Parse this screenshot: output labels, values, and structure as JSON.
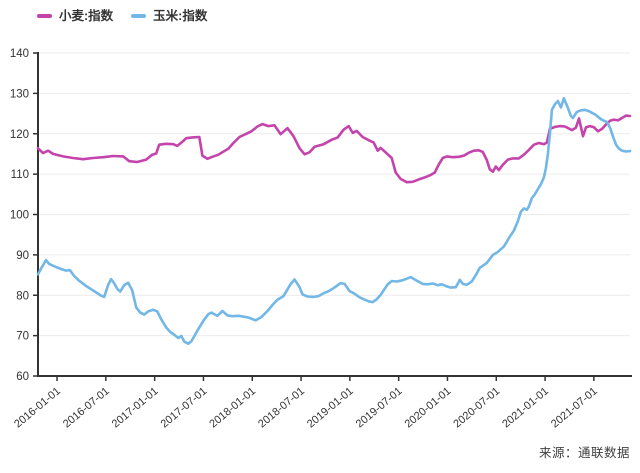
{
  "legend": {
    "items": [
      {
        "label": "小麦:指数",
        "color": "#c444ac"
      },
      {
        "label": "玉米:指数",
        "color": "#72b7e6"
      }
    ]
  },
  "source_note": "来源：通联数据",
  "chart_data": {
    "type": "line",
    "title": "",
    "xlabel": "",
    "ylabel": "",
    "grid": true,
    "legend_position": "top-left",
    "colors": {
      "grid": "#ececec",
      "axis": "#333333",
      "text": "#333333"
    },
    "y_axis": {
      "min": 60,
      "max": 140,
      "ticks": [
        60,
        70,
        80,
        90,
        100,
        110,
        120,
        130,
        140
      ]
    },
    "x_axis": {
      "range": [
        2015.805,
        2021.87
      ],
      "tick_positions": [
        2016.0,
        2016.5,
        2017.0,
        2017.5,
        2018.0,
        2018.5,
        2019.0,
        2019.5,
        2020.0,
        2020.5,
        2021.0,
        2021.5
      ],
      "tick_labels": [
        "2016-01-01",
        "2016-07-01",
        "2017-01-01",
        "2017-07-01",
        "2018-01-01",
        "2018-07-01",
        "2019-01-01",
        "2019-07-01",
        "2020-01-01",
        "2020-07-01",
        "2021-01-01",
        "2021-07-01"
      ]
    },
    "series": [
      {
        "name": "小麦:指数",
        "color": "#c444ac",
        "points": [
          [
            2015.805,
            116.4
          ],
          [
            2015.856,
            115.2
          ],
          [
            2015.908,
            115.8
          ],
          [
            2015.959,
            115.0
          ],
          [
            2016.062,
            114.4
          ],
          [
            2016.164,
            114.0
          ],
          [
            2016.267,
            113.7
          ],
          [
            2016.37,
            114.0
          ],
          [
            2016.472,
            114.2
          ],
          [
            2016.575,
            114.5
          ],
          [
            2016.678,
            114.4
          ],
          [
            2016.739,
            113.2
          ],
          [
            2016.821,
            113.0
          ],
          [
            2016.914,
            113.6
          ],
          [
            2016.975,
            114.8
          ],
          [
            2017.016,
            115.1
          ],
          [
            2017.047,
            117.3
          ],
          [
            2017.119,
            117.5
          ],
          [
            2017.191,
            117.4
          ],
          [
            2017.232,
            117.0
          ],
          [
            2017.273,
            117.8
          ],
          [
            2017.324,
            118.9
          ],
          [
            2017.386,
            119.1
          ],
          [
            2017.458,
            119.2
          ],
          [
            2017.489,
            114.6
          ],
          [
            2017.54,
            113.8
          ],
          [
            2017.591,
            114.3
          ],
          [
            2017.653,
            114.8
          ],
          [
            2017.755,
            116.3
          ],
          [
            2017.807,
            117.7
          ],
          [
            2017.868,
            119.2
          ],
          [
            2017.93,
            119.9
          ],
          [
            2017.992,
            120.6
          ],
          [
            2018.053,
            121.8
          ],
          [
            2018.105,
            122.4
          ],
          [
            2018.166,
            121.9
          ],
          [
            2018.228,
            122.1
          ],
          [
            2018.29,
            119.9
          ],
          [
            2018.361,
            121.4
          ],
          [
            2018.423,
            119.4
          ],
          [
            2018.485,
            116.4
          ],
          [
            2018.536,
            114.9
          ],
          [
            2018.587,
            115.4
          ],
          [
            2018.639,
            116.8
          ],
          [
            2018.731,
            117.4
          ],
          [
            2018.813,
            118.5
          ],
          [
            2018.875,
            119.1
          ],
          [
            2018.936,
            121.0
          ],
          [
            2018.988,
            121.9
          ],
          [
            2019.029,
            120.2
          ],
          [
            2019.07,
            120.7
          ],
          [
            2019.131,
            119.2
          ],
          [
            2019.193,
            118.4
          ],
          [
            2019.244,
            117.8
          ],
          [
            2019.285,
            115.8
          ],
          [
            2019.316,
            116.5
          ],
          [
            2019.388,
            114.9
          ],
          [
            2019.429,
            114.0
          ],
          [
            2019.47,
            110.4
          ],
          [
            2019.521,
            108.8
          ],
          [
            2019.583,
            108.0
          ],
          [
            2019.644,
            108.1
          ],
          [
            2019.706,
            108.7
          ],
          [
            2019.768,
            109.2
          ],
          [
            2019.829,
            109.8
          ],
          [
            2019.87,
            110.4
          ],
          [
            2019.911,
            112.4
          ],
          [
            2019.952,
            114.0
          ],
          [
            2019.993,
            114.4
          ],
          [
            2020.055,
            114.2
          ],
          [
            2020.116,
            114.3
          ],
          [
            2020.168,
            114.6
          ],
          [
            2020.219,
            115.3
          ],
          [
            2020.27,
            115.8
          ],
          [
            2020.321,
            115.9
          ],
          [
            2020.362,
            115.5
          ],
          [
            2020.403,
            113.5
          ],
          [
            2020.434,
            111.2
          ],
          [
            2020.465,
            110.6
          ],
          [
            2020.495,
            111.9
          ],
          [
            2020.526,
            111.0
          ],
          [
            2020.567,
            112.3
          ],
          [
            2020.619,
            113.6
          ],
          [
            2020.67,
            113.9
          ],
          [
            2020.731,
            113.9
          ],
          [
            2020.783,
            114.8
          ],
          [
            2020.834,
            116.0
          ],
          [
            2020.885,
            117.3
          ],
          [
            2020.937,
            117.7
          ],
          [
            2020.988,
            117.4
          ],
          [
            2021.018,
            117.8
          ],
          [
            2021.049,
            121.2
          ],
          [
            2021.101,
            121.7
          ],
          [
            2021.152,
            121.9
          ],
          [
            2021.203,
            121.8
          ],
          [
            2021.244,
            121.3
          ],
          [
            2021.275,
            120.9
          ],
          [
            2021.316,
            121.5
          ],
          [
            2021.347,
            123.8
          ],
          [
            2021.388,
            119.4
          ],
          [
            2021.419,
            121.6
          ],
          [
            2021.46,
            121.9
          ],
          [
            2021.501,
            121.6
          ],
          [
            2021.542,
            120.6
          ],
          [
            2021.583,
            121.2
          ],
          [
            2021.624,
            122.3
          ],
          [
            2021.665,
            123.2
          ],
          [
            2021.706,
            123.5
          ],
          [
            2021.747,
            123.3
          ],
          [
            2021.788,
            123.9
          ],
          [
            2021.829,
            124.5
          ],
          [
            2021.87,
            124.4
          ]
        ]
      },
      {
        "name": "玉米:指数",
        "color": "#72b7e6",
        "points": [
          [
            2015.805,
            85.2
          ],
          [
            2015.836,
            86.6
          ],
          [
            2015.887,
            88.7
          ],
          [
            2015.918,
            87.8
          ],
          [
            2015.969,
            87.2
          ],
          [
            2016.041,
            86.5
          ],
          [
            2016.092,
            86.1
          ],
          [
            2016.133,
            86.2
          ],
          [
            2016.175,
            84.8
          ],
          [
            2016.226,
            83.6
          ],
          [
            2016.298,
            82.3
          ],
          [
            2016.349,
            81.5
          ],
          [
            2016.4,
            80.7
          ],
          [
            2016.452,
            79.9
          ],
          [
            2016.483,
            79.6
          ],
          [
            2016.524,
            82.6
          ],
          [
            2016.554,
            84.0
          ],
          [
            2016.585,
            83.0
          ],
          [
            2016.616,
            81.6
          ],
          [
            2016.647,
            80.9
          ],
          [
            2016.688,
            82.5
          ],
          [
            2016.729,
            83.1
          ],
          [
            2016.77,
            81.2
          ],
          [
            2016.811,
            77.0
          ],
          [
            2016.852,
            75.7
          ],
          [
            2016.893,
            75.2
          ],
          [
            2016.934,
            76.0
          ],
          [
            2016.986,
            76.4
          ],
          [
            2017.027,
            76.0
          ],
          [
            2017.068,
            74.0
          ],
          [
            2017.119,
            72.0
          ],
          [
            2017.16,
            70.9
          ],
          [
            2017.201,
            70.2
          ],
          [
            2017.242,
            69.4
          ],
          [
            2017.273,
            69.9
          ],
          [
            2017.304,
            68.5
          ],
          [
            2017.345,
            68.0
          ],
          [
            2017.376,
            68.6
          ],
          [
            2017.407,
            69.9
          ],
          [
            2017.437,
            71.2
          ],
          [
            2017.499,
            73.7
          ],
          [
            2017.55,
            75.3
          ],
          [
            2017.581,
            75.7
          ],
          [
            2017.643,
            74.9
          ],
          [
            2017.694,
            76.1
          ],
          [
            2017.745,
            75.0
          ],
          [
            2017.796,
            74.8
          ],
          [
            2017.858,
            74.9
          ],
          [
            2017.909,
            74.7
          ],
          [
            2017.961,
            74.5
          ],
          [
            2018.033,
            73.8
          ],
          [
            2018.094,
            74.6
          ],
          [
            2018.156,
            76.1
          ],
          [
            2018.207,
            77.6
          ],
          [
            2018.259,
            78.9
          ],
          [
            2018.32,
            79.8
          ],
          [
            2018.392,
            82.7
          ],
          [
            2018.433,
            83.9
          ],
          [
            2018.485,
            82.0
          ],
          [
            2018.515,
            80.2
          ],
          [
            2018.567,
            79.7
          ],
          [
            2018.628,
            79.6
          ],
          [
            2018.68,
            79.8
          ],
          [
            2018.731,
            80.5
          ],
          [
            2018.782,
            81.0
          ],
          [
            2018.823,
            81.6
          ],
          [
            2018.864,
            82.3
          ],
          [
            2018.905,
            83.0
          ],
          [
            2018.946,
            82.8
          ],
          [
            2018.998,
            81.0
          ],
          [
            2019.039,
            80.5
          ],
          [
            2019.1,
            79.5
          ],
          [
            2019.152,
            78.9
          ],
          [
            2019.193,
            78.5
          ],
          [
            2019.234,
            78.3
          ],
          [
            2019.275,
            79.0
          ],
          [
            2019.316,
            80.1
          ],
          [
            2019.388,
            82.7
          ],
          [
            2019.429,
            83.5
          ],
          [
            2019.48,
            83.4
          ],
          [
            2019.521,
            83.6
          ],
          [
            2019.573,
            84.0
          ],
          [
            2019.624,
            84.5
          ],
          [
            2019.686,
            83.6
          ],
          [
            2019.747,
            82.8
          ],
          [
            2019.798,
            82.7
          ],
          [
            2019.85,
            82.9
          ],
          [
            2019.901,
            82.5
          ],
          [
            2019.942,
            82.7
          ],
          [
            2019.993,
            82.2
          ],
          [
            2020.034,
            81.9
          ],
          [
            2020.085,
            82.0
          ],
          [
            2020.126,
            83.8
          ],
          [
            2020.157,
            82.8
          ],
          [
            2020.198,
            82.6
          ],
          [
            2020.249,
            83.4
          ],
          [
            2020.29,
            85.0
          ],
          [
            2020.331,
            86.8
          ],
          [
            2020.403,
            88.0
          ],
          [
            2020.465,
            90.0
          ],
          [
            2020.516,
            90.7
          ],
          [
            2020.578,
            92.1
          ],
          [
            2020.639,
            94.5
          ],
          [
            2020.68,
            96.0
          ],
          [
            2020.721,
            98.3
          ],
          [
            2020.752,
            100.7
          ],
          [
            2020.783,
            101.5
          ],
          [
            2020.814,
            101.2
          ],
          [
            2020.834,
            102.0
          ],
          [
            2020.865,
            104.1
          ],
          [
            2020.896,
            105.0
          ],
          [
            2020.926,
            106.3
          ],
          [
            2020.957,
            107.5
          ],
          [
            2020.988,
            109.2
          ],
          [
            2021.008,
            111.5
          ],
          [
            2021.029,
            115.0
          ],
          [
            2021.049,
            120.0
          ],
          [
            2021.07,
            125.9
          ],
          [
            2021.101,
            127.3
          ],
          [
            2021.131,
            128.1
          ],
          [
            2021.162,
            126.5
          ],
          [
            2021.193,
            128.8
          ],
          [
            2021.234,
            126.4
          ],
          [
            2021.265,
            124.4
          ],
          [
            2021.285,
            123.9
          ],
          [
            2021.326,
            125.4
          ],
          [
            2021.367,
            125.8
          ],
          [
            2021.408,
            125.9
          ],
          [
            2021.449,
            125.6
          ],
          [
            2021.48,
            125.2
          ],
          [
            2021.511,
            124.8
          ],
          [
            2021.542,
            124.2
          ],
          [
            2021.573,
            123.6
          ],
          [
            2021.604,
            123.2
          ],
          [
            2021.634,
            122.9
          ],
          [
            2021.665,
            121.5
          ],
          [
            2021.696,
            119.3
          ],
          [
            2021.727,
            117.3
          ],
          [
            2021.757,
            116.3
          ],
          [
            2021.788,
            115.8
          ],
          [
            2021.829,
            115.6
          ],
          [
            2021.87,
            115.7
          ]
        ]
      }
    ]
  }
}
